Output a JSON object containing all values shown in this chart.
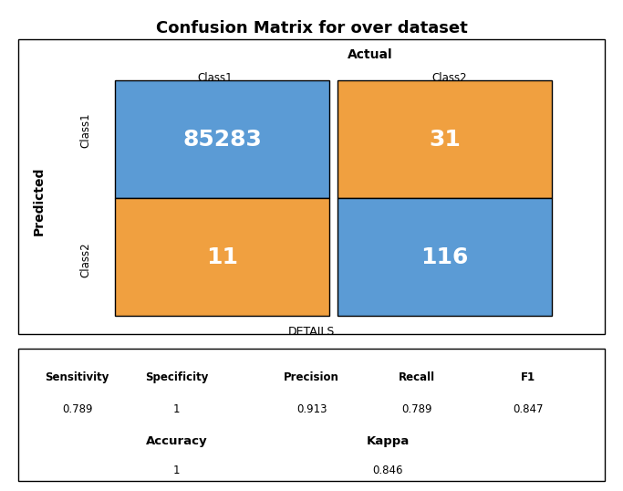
{
  "title": "Confusion Matrix for over dataset",
  "matrix": [
    [
      85283,
      31
    ],
    [
      11,
      116
    ]
  ],
  "classes": [
    "Class1",
    "Class2"
  ],
  "colors_diagonal": "#5B9BD5",
  "colors_offdiagonal": "#F0A040",
  "cell_text_color": "white",
  "cell_fontsize": 18,
  "actual_label": "Actual",
  "predicted_label": "Predicted",
  "details_label": "DETAILS",
  "metrics": {
    "Sensitivity": "0.789",
    "Specificity": "1",
    "Precision": "0.913",
    "Recall": "0.789",
    "F1": "0.847"
  },
  "metrics2": {
    "Accuracy": "1",
    "Kappa": "0.846"
  },
  "bg_color": "#FFFFFF",
  "border_color": "#000000"
}
